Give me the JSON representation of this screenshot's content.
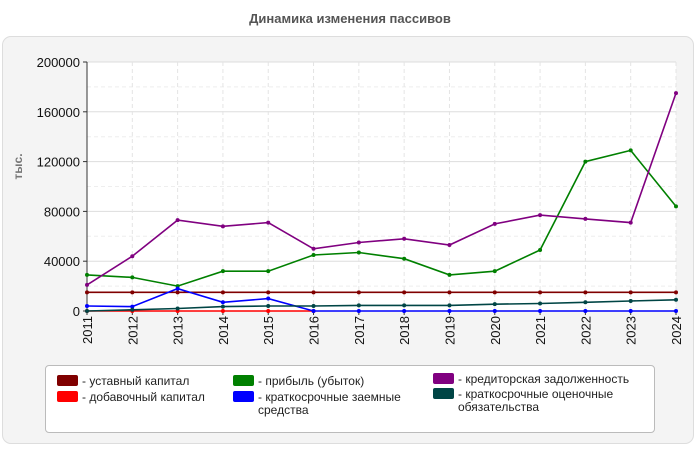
{
  "chart_data": {
    "type": "line",
    "title": "Динамика изменения пассивов",
    "ylabel": "тыс.",
    "xlabel": "",
    "ylim": [
      0,
      200000
    ],
    "yticks": [
      0,
      40000,
      80000,
      120000,
      160000,
      200000
    ],
    "ytick_labels": [
      "0",
      "40000",
      "80000",
      "120000",
      "160000",
      "200000"
    ],
    "categories": [
      "2011",
      "2012",
      "2013",
      "2014",
      "2015",
      "2016",
      "2017",
      "2018",
      "2019",
      "2020",
      "2021",
      "2022",
      "2023",
      "2024"
    ],
    "series": [
      {
        "name": "- уставный капитал",
        "color": "#800000",
        "values": [
          15000,
          15000,
          15000,
          15000,
          15000,
          15000,
          15000,
          15000,
          15000,
          15000,
          15000,
          15000,
          15000,
          15000
        ]
      },
      {
        "name": "- добавочный капитал",
        "color": "#ff0000",
        "values": [
          0,
          0,
          0,
          0,
          0,
          0,
          null,
          null,
          null,
          null,
          null,
          null,
          null,
          null
        ]
      },
      {
        "name": "- прибыль (убыток)",
        "color": "#008000",
        "values": [
          29000,
          27000,
          20000,
          32000,
          32000,
          45000,
          47000,
          42000,
          29000,
          32000,
          49000,
          120000,
          129000,
          84000
        ]
      },
      {
        "name": "- краткосрочные заемные средства",
        "color": "#0000ff",
        "values": [
          4000,
          3500,
          18000,
          7000,
          10000,
          0,
          0,
          0,
          0,
          0,
          0,
          0,
          0,
          0
        ]
      },
      {
        "name": "- кредиторская задолженность",
        "color": "#800080",
        "values": [
          21000,
          44000,
          73000,
          68000,
          71000,
          50000,
          55000,
          58000,
          53000,
          70000,
          77000,
          74000,
          71000,
          175000
        ]
      },
      {
        "name": "- краткосрочные оценочные обязательства",
        "color": "#004545",
        "values": [
          0,
          1000,
          2000,
          3500,
          4000,
          4000,
          4500,
          4500,
          4500,
          5500,
          6000,
          7000,
          8000,
          9000
        ]
      }
    ],
    "grid": true,
    "legend_position": "bottom"
  }
}
